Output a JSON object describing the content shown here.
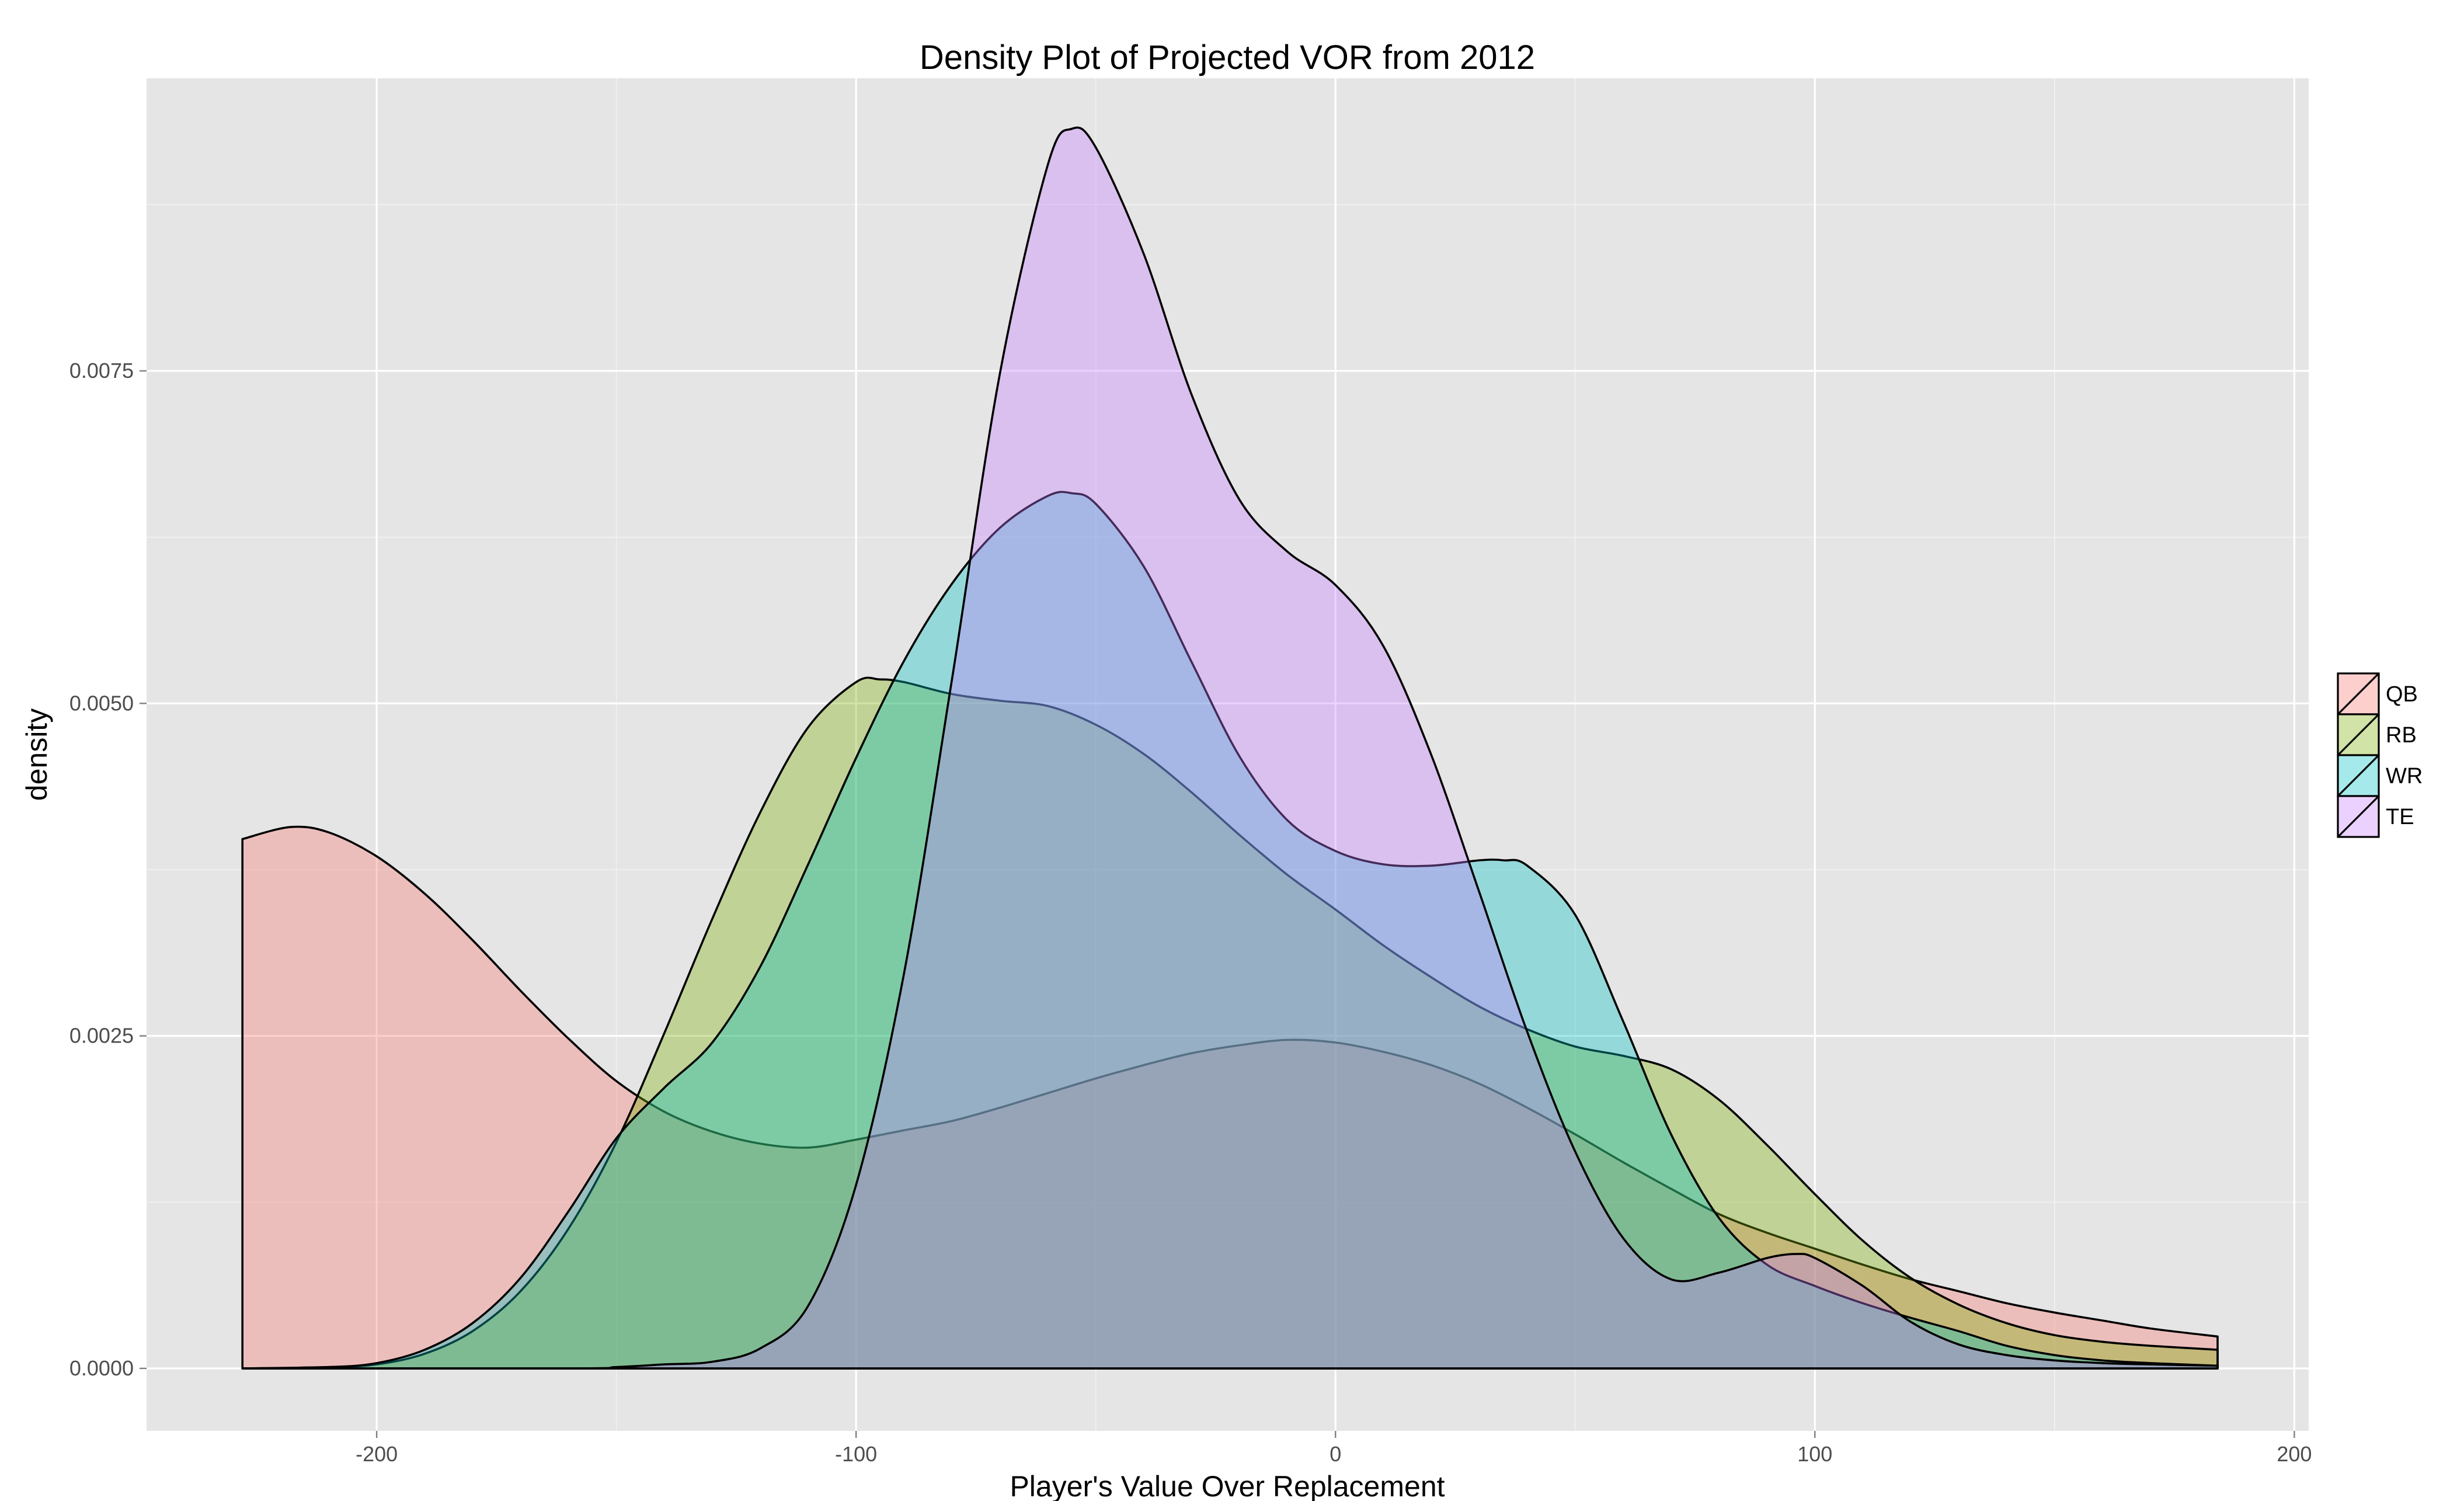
{
  "chart_data": {
    "type": "area",
    "subtype": "density",
    "title": "Density Plot of Projected VOR from 2012",
    "xlabel": "Player's Value Over Replacement",
    "ylabel": "density",
    "xlim": [
      -248,
      203
    ],
    "ylim": [
      -0.00047,
      0.0097
    ],
    "x_ticks": [
      -200,
      -100,
      0,
      100,
      200
    ],
    "x_tick_labels": [
      "-200",
      "-100",
      "0",
      "100",
      "200"
    ],
    "y_ticks": [
      0,
      0.0025,
      0.005,
      0.0075
    ],
    "y_tick_labels": [
      "0.0000",
      "0.0025",
      "0.0050",
      "0.0075"
    ],
    "grid": true,
    "legend_position": "right",
    "fill_alpha": 0.35,
    "series": [
      {
        "name": "QB",
        "color": "#F8766D",
        "points": [
          [
            -228,
            0.00398
          ],
          [
            -218,
            0.00407
          ],
          [
            -210,
            0.00403
          ],
          [
            -200,
            0.00385
          ],
          [
            -190,
            0.00357
          ],
          [
            -180,
            0.00322
          ],
          [
            -170,
            0.00284
          ],
          [
            -160,
            0.00248
          ],
          [
            -150,
            0.00216
          ],
          [
            -140,
            0.00193
          ],
          [
            -130,
            0.00178
          ],
          [
            -120,
            0.00169
          ],
          [
            -110,
            0.00166
          ],
          [
            -100,
            0.00172
          ],
          [
            -90,
            0.00179
          ],
          [
            -80,
            0.00186
          ],
          [
            -70,
            0.00196
          ],
          [
            -60,
            0.00207
          ],
          [
            -50,
            0.00218
          ],
          [
            -40,
            0.00228
          ],
          [
            -30,
            0.00237
          ],
          [
            -20,
            0.00243
          ],
          [
            -10,
            0.00247
          ],
          [
            0,
            0.00245
          ],
          [
            10,
            0.00238
          ],
          [
            20,
            0.00228
          ],
          [
            30,
            0.00214
          ],
          [
            40,
            0.00196
          ],
          [
            50,
            0.00176
          ],
          [
            60,
            0.00155
          ],
          [
            70,
            0.00135
          ],
          [
            80,
            0.00116
          ],
          [
            90,
            0.00102
          ],
          [
            100,
            0.0009
          ],
          [
            110,
            0.00078
          ],
          [
            120,
            0.00067
          ],
          [
            130,
            0.00058
          ],
          [
            140,
            0.00049
          ],
          [
            150,
            0.00042
          ],
          [
            160,
            0.00036
          ],
          [
            170,
            0.0003
          ],
          [
            184,
            0.00024
          ]
        ]
      },
      {
        "name": "RB",
        "color": "#7CAE00",
        "points": [
          [
            -228,
            0
          ],
          [
            -210,
            1e-05
          ],
          [
            -200,
            3e-05
          ],
          [
            -190,
            0.00011
          ],
          [
            -180,
            0.00028
          ],
          [
            -170,
            0.00058
          ],
          [
            -160,
            0.00105
          ],
          [
            -150,
            0.0017
          ],
          [
            -140,
            0.00252
          ],
          [
            -130,
            0.00338
          ],
          [
            -120,
            0.00418
          ],
          [
            -110,
            0.00482
          ],
          [
            -100,
            0.00516
          ],
          [
            -95,
            0.00518
          ],
          [
            -90,
            0.00516
          ],
          [
            -80,
            0.00507
          ],
          [
            -70,
            0.00502
          ],
          [
            -60,
            0.00498
          ],
          [
            -50,
            0.00484
          ],
          [
            -40,
            0.00462
          ],
          [
            -30,
            0.00433
          ],
          [
            -20,
            0.00401
          ],
          [
            -10,
            0.00371
          ],
          [
            0,
            0.00345
          ],
          [
            10,
            0.00318
          ],
          [
            20,
            0.00294
          ],
          [
            30,
            0.00272
          ],
          [
            40,
            0.00255
          ],
          [
            50,
            0.00242
          ],
          [
            60,
            0.00235
          ],
          [
            70,
            0.00225
          ],
          [
            80,
            0.00202
          ],
          [
            90,
            0.00168
          ],
          [
            100,
            0.00131
          ],
          [
            110,
            0.00096
          ],
          [
            120,
            0.00068
          ],
          [
            130,
            0.00048
          ],
          [
            140,
            0.00034
          ],
          [
            150,
            0.00025
          ],
          [
            160,
            0.0002
          ],
          [
            170,
            0.00017
          ],
          [
            184,
            0.00014
          ]
        ]
      },
      {
        "name": "WR",
        "color": "#00BFC4",
        "points": [
          [
            -228,
            0
          ],
          [
            -210,
            1e-05
          ],
          [
            -200,
            4e-05
          ],
          [
            -190,
            0.00014
          ],
          [
            -180,
            0.00034
          ],
          [
            -170,
            0.00068
          ],
          [
            -160,
            0.00118
          ],
          [
            -150,
            0.00173
          ],
          [
            -140,
            0.00211
          ],
          [
            -130,
            0.00245
          ],
          [
            -120,
            0.00302
          ],
          [
            -110,
            0.00379
          ],
          [
            -100,
            0.00459
          ],
          [
            -90,
            0.00532
          ],
          [
            -80,
            0.0059
          ],
          [
            -70,
            0.00632
          ],
          [
            -60,
            0.00656
          ],
          [
            -55,
            0.00658
          ],
          [
            -50,
            0.0065
          ],
          [
            -40,
            0.00603
          ],
          [
            -30,
            0.00531
          ],
          [
            -20,
            0.0046
          ],
          [
            -10,
            0.00412
          ],
          [
            0,
            0.00389
          ],
          [
            10,
            0.00379
          ],
          [
            20,
            0.00378
          ],
          [
            30,
            0.00382
          ],
          [
            35,
            0.00382
          ],
          [
            40,
            0.00378
          ],
          [
            50,
            0.00341
          ],
          [
            60,
            0.00261
          ],
          [
            70,
            0.00176
          ],
          [
            80,
            0.00113
          ],
          [
            90,
            0.00078
          ],
          [
            100,
            0.00062
          ],
          [
            110,
            0.00049
          ],
          [
            120,
            0.00038
          ],
          [
            130,
            0.00028
          ],
          [
            140,
            0.00017
          ],
          [
            150,
            0.0001
          ],
          [
            160,
            6e-05
          ],
          [
            170,
            4e-05
          ],
          [
            184,
            2e-05
          ]
        ]
      },
      {
        "name": "TE",
        "color": "#C77CFF",
        "points": [
          [
            -228,
            0
          ],
          [
            -160,
            0
          ],
          [
            -150,
            1e-05
          ],
          [
            -140,
            3e-05
          ],
          [
            -130,
            5e-05
          ],
          [
            -120,
            0.00015
          ],
          [
            -110,
            0.00047
          ],
          [
            -100,
            0.00138
          ],
          [
            -90,
            0.00297
          ],
          [
            -80,
            0.00518
          ],
          [
            -70,
            0.00748
          ],
          [
            -60,
            0.00905
          ],
          [
            -55,
            0.00932
          ],
          [
            -50,
            0.00918
          ],
          [
            -40,
            0.00838
          ],
          [
            -30,
            0.00732
          ],
          [
            -20,
            0.00653
          ],
          [
            -10,
            0.00614
          ],
          [
            0,
            0.00589
          ],
          [
            10,
            0.00543
          ],
          [
            20,
            0.00461
          ],
          [
            30,
            0.00358
          ],
          [
            40,
            0.00253
          ],
          [
            50,
            0.00163
          ],
          [
            60,
            0.00098
          ],
          [
            70,
            0.00067
          ],
          [
            80,
            0.00072
          ],
          [
            90,
            0.00083
          ],
          [
            96,
            0.00086
          ],
          [
            100,
            0.00083
          ],
          [
            110,
            0.00062
          ],
          [
            120,
            0.00035
          ],
          [
            130,
            0.00018
          ],
          [
            140,
            0.0001
          ],
          [
            150,
            6e-05
          ],
          [
            160,
            4e-05
          ],
          [
            170,
            3e-05
          ],
          [
            184,
            2e-05
          ]
        ]
      }
    ]
  }
}
